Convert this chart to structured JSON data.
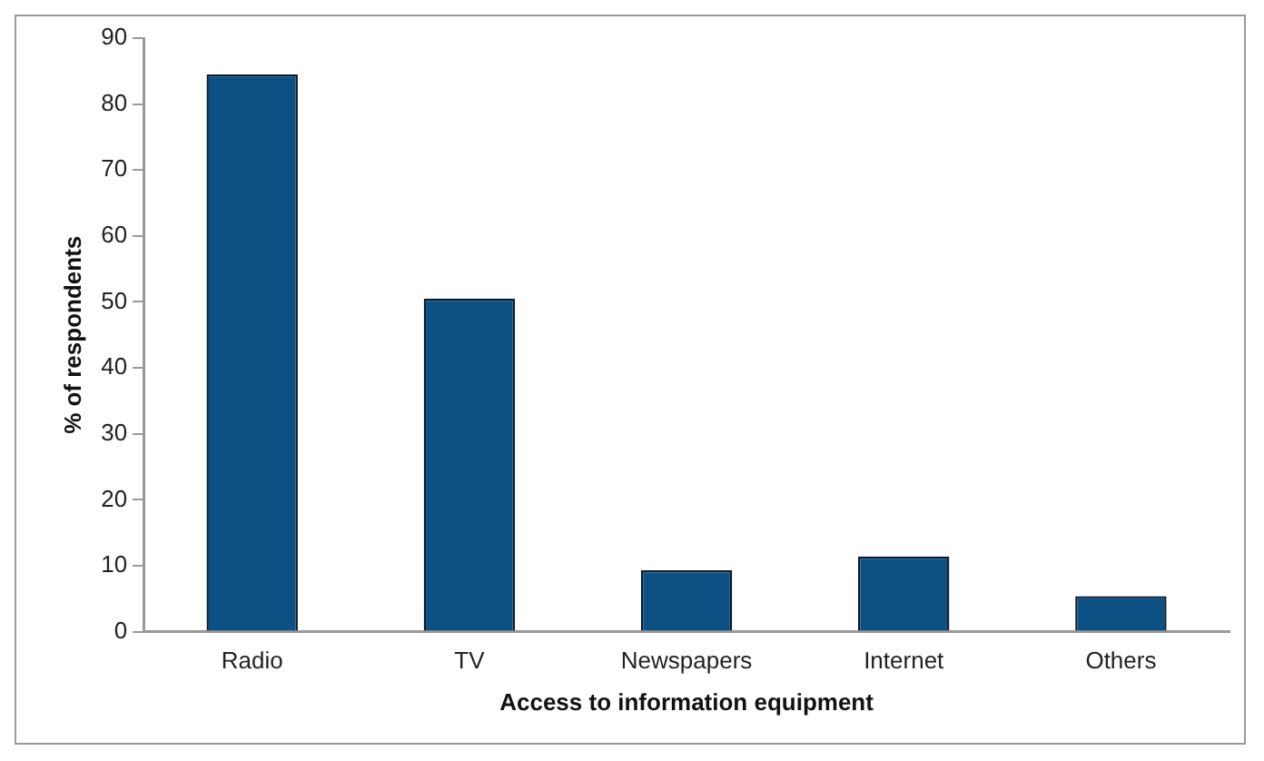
{
  "chart_data": {
    "type": "bar",
    "xlabel": "Access to information equipment",
    "ylabel": "% of respondents",
    "categories": [
      "Radio",
      "TV",
      "Newspapers",
      "Internet",
      "Others"
    ],
    "values": [
      84.5,
      50.5,
      9.3,
      11.4,
      5.4
    ],
    "color": "#0d5184",
    "ylim": [
      0,
      90
    ],
    "yticks": [
      0,
      10,
      20,
      30,
      40,
      50,
      60,
      70,
      80,
      90
    ],
    "grid": false,
    "legend": false
  }
}
